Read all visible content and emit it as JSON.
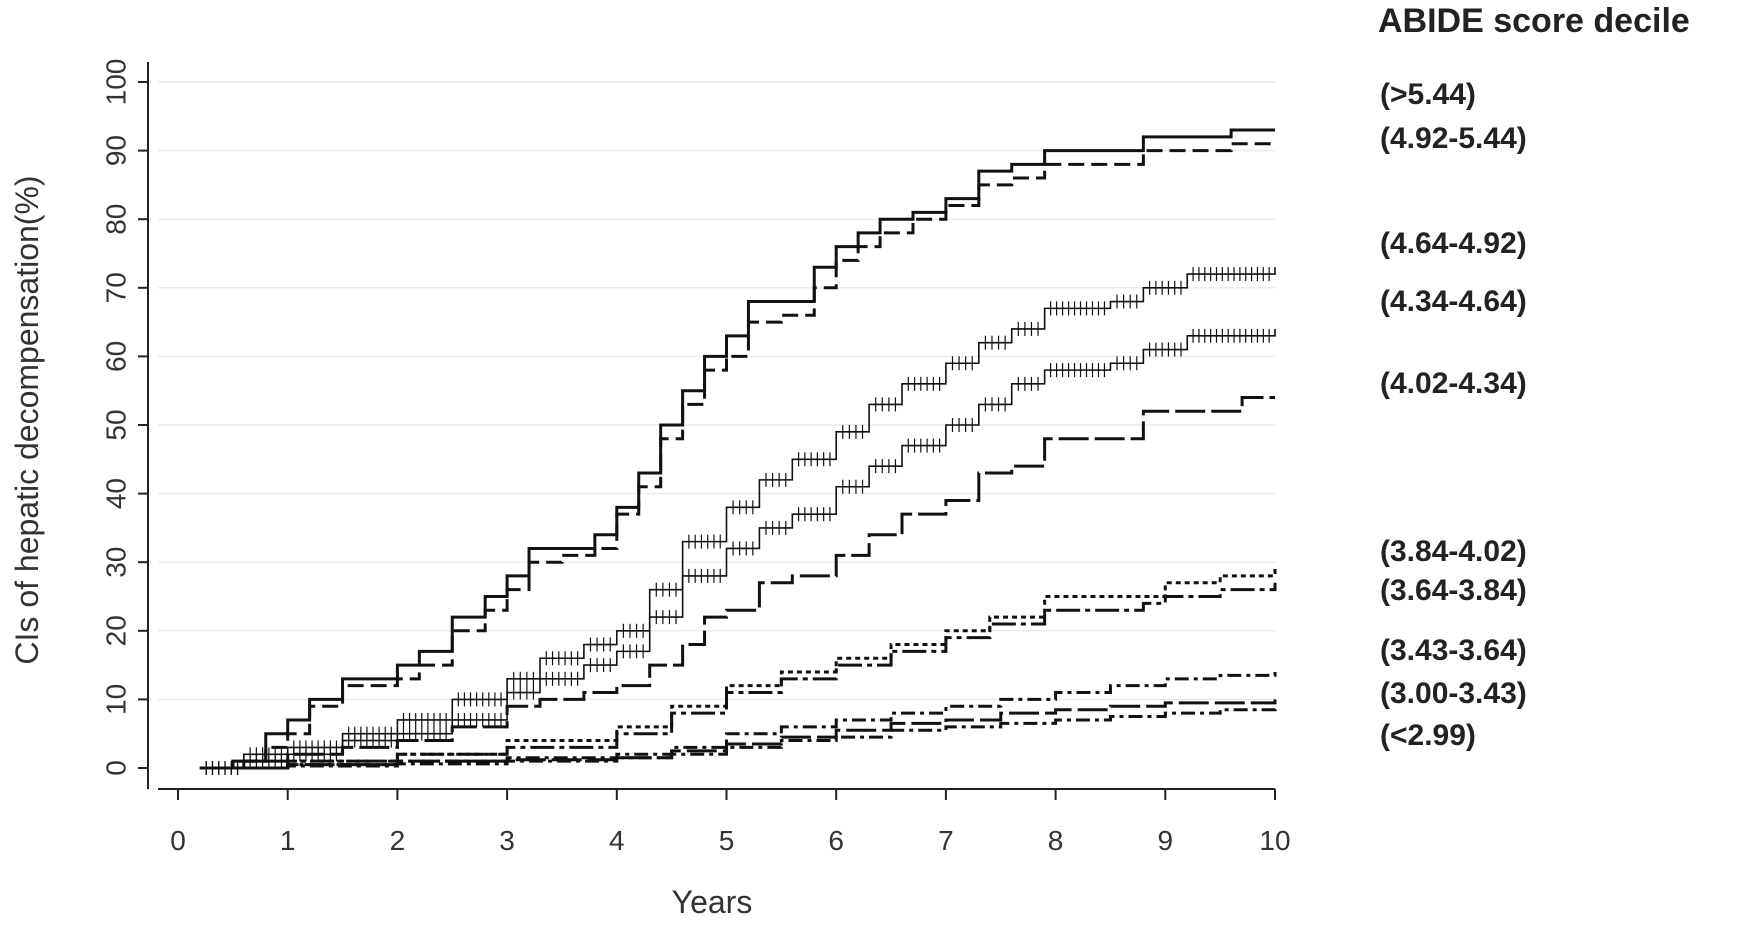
{
  "chart_data": {
    "type": "line",
    "step": true,
    "title": "",
    "xlabel": "Years",
    "ylabel": "CIs of hepatic decompensation(%)",
    "xlim": [
      0,
      10
    ],
    "ylim": [
      0,
      100
    ],
    "x_ticks": [
      0,
      1,
      2,
      3,
      4,
      5,
      6,
      7,
      8,
      9,
      10
    ],
    "y_ticks": [
      0,
      10,
      20,
      30,
      40,
      50,
      60,
      70,
      80,
      90,
      100
    ],
    "grid": "horizontal",
    "legend": {
      "title": "ABIDE score decile",
      "placement": "right, labels aligned to curve ends"
    },
    "series": [
      {
        "name": "(>5.44)",
        "style": "solid",
        "censor_marks": false,
        "points": [
          [
            0.2,
            0
          ],
          [
            0.5,
            1
          ],
          [
            0.8,
            5
          ],
          [
            1,
            7
          ],
          [
            1.2,
            10
          ],
          [
            1.5,
            13
          ],
          [
            2,
            15
          ],
          [
            2.2,
            17
          ],
          [
            2.5,
            22
          ],
          [
            2.8,
            25
          ],
          [
            3,
            28
          ],
          [
            3.2,
            32
          ],
          [
            3.5,
            32
          ],
          [
            3.8,
            34
          ],
          [
            4,
            38
          ],
          [
            4.2,
            43
          ],
          [
            4.4,
            50
          ],
          [
            4.6,
            55
          ],
          [
            4.8,
            60
          ],
          [
            5,
            63
          ],
          [
            5.2,
            68
          ],
          [
            5.5,
            68
          ],
          [
            5.8,
            73
          ],
          [
            6,
            76
          ],
          [
            6.2,
            78
          ],
          [
            6.4,
            80
          ],
          [
            6.7,
            81
          ],
          [
            7,
            83
          ],
          [
            7.3,
            87
          ],
          [
            7.6,
            88
          ],
          [
            7.9,
            90
          ],
          [
            8.5,
            90
          ],
          [
            8.8,
            92
          ],
          [
            9.5,
            92
          ],
          [
            9.6,
            93
          ],
          [
            10,
            93
          ]
        ]
      },
      {
        "name": "(4.92-5.44)",
        "style": "dashed",
        "censor_marks": false,
        "points": [
          [
            0.2,
            0
          ],
          [
            0.5,
            1
          ],
          [
            0.8,
            3
          ],
          [
            1,
            5
          ],
          [
            1.2,
            9
          ],
          [
            1.5,
            12
          ],
          [
            2,
            13
          ],
          [
            2.2,
            15
          ],
          [
            2.5,
            20
          ],
          [
            2.8,
            23
          ],
          [
            3,
            26
          ],
          [
            3.2,
            30
          ],
          [
            3.5,
            31
          ],
          [
            3.8,
            32
          ],
          [
            4,
            37
          ],
          [
            4.2,
            41
          ],
          [
            4.4,
            48
          ],
          [
            4.6,
            53
          ],
          [
            4.8,
            58
          ],
          [
            5,
            60
          ],
          [
            5.2,
            65
          ],
          [
            5.5,
            66
          ],
          [
            5.8,
            70
          ],
          [
            6,
            74
          ],
          [
            6.2,
            76
          ],
          [
            6.4,
            78
          ],
          [
            6.7,
            80
          ],
          [
            7,
            82
          ],
          [
            7.3,
            85
          ],
          [
            7.6,
            86
          ],
          [
            7.9,
            88
          ],
          [
            8.5,
            88
          ],
          [
            8.8,
            90
          ],
          [
            9.5,
            90
          ],
          [
            9.6,
            91
          ],
          [
            10,
            91
          ]
        ]
      },
      {
        "name": "(4.64-4.92)",
        "style": "solid-thin",
        "censor_marks": true,
        "points": [
          [
            0.2,
            0
          ],
          [
            0.6,
            2
          ],
          [
            1,
            3
          ],
          [
            1.5,
            5
          ],
          [
            2,
            7
          ],
          [
            2.5,
            10
          ],
          [
            3,
            13
          ],
          [
            3.3,
            16
          ],
          [
            3.7,
            18
          ],
          [
            4,
            20
          ],
          [
            4.3,
            26
          ],
          [
            4.6,
            33
          ],
          [
            5,
            38
          ],
          [
            5.3,
            42
          ],
          [
            5.6,
            45
          ],
          [
            6,
            49
          ],
          [
            6.3,
            53
          ],
          [
            6.6,
            56
          ],
          [
            7,
            59
          ],
          [
            7.3,
            62
          ],
          [
            7.6,
            64
          ],
          [
            7.9,
            67
          ],
          [
            8.5,
            68
          ],
          [
            8.8,
            70
          ],
          [
            9.2,
            72
          ],
          [
            10,
            73
          ]
        ]
      },
      {
        "name": "(4.34-4.64)",
        "style": "solid-thin",
        "censor_marks": true,
        "points": [
          [
            0.2,
            0
          ],
          [
            0.6,
            1
          ],
          [
            1,
            2
          ],
          [
            1.5,
            4
          ],
          [
            2,
            5
          ],
          [
            2.5,
            7
          ],
          [
            3,
            11
          ],
          [
            3.3,
            13
          ],
          [
            3.7,
            15
          ],
          [
            4,
            17
          ],
          [
            4.3,
            22
          ],
          [
            4.6,
            28
          ],
          [
            5,
            32
          ],
          [
            5.3,
            35
          ],
          [
            5.6,
            37
          ],
          [
            6,
            41
          ],
          [
            6.3,
            44
          ],
          [
            6.6,
            47
          ],
          [
            7,
            50
          ],
          [
            7.3,
            53
          ],
          [
            7.6,
            56
          ],
          [
            7.9,
            58
          ],
          [
            8.5,
            59
          ],
          [
            8.8,
            61
          ],
          [
            9.2,
            63
          ],
          [
            10,
            64
          ]
        ]
      },
      {
        "name": "(4.02-4.34)",
        "style": "long-dash",
        "censor_marks": false,
        "points": [
          [
            0.2,
            0
          ],
          [
            0.6,
            1
          ],
          [
            1,
            2
          ],
          [
            1.5,
            3
          ],
          [
            2,
            4
          ],
          [
            2.5,
            6
          ],
          [
            3,
            9
          ],
          [
            3.3,
            10
          ],
          [
            3.7,
            11
          ],
          [
            4,
            12
          ],
          [
            4.3,
            15
          ],
          [
            4.6,
            18
          ],
          [
            4.8,
            22
          ],
          [
            5,
            23
          ],
          [
            5.3,
            27
          ],
          [
            5.6,
            28
          ],
          [
            6,
            31
          ],
          [
            6.3,
            34
          ],
          [
            6.6,
            37
          ],
          [
            7,
            39
          ],
          [
            7.3,
            43
          ],
          [
            7.6,
            44
          ],
          [
            7.9,
            48
          ],
          [
            8.5,
            48
          ],
          [
            8.8,
            52
          ],
          [
            9.5,
            52
          ],
          [
            9.7,
            54
          ],
          [
            10,
            54
          ]
        ]
      },
      {
        "name": "(3.84-4.02)",
        "style": "dotted",
        "censor_marks": false,
        "points": [
          [
            0.2,
            0
          ],
          [
            1,
            1
          ],
          [
            2,
            2
          ],
          [
            3,
            4
          ],
          [
            4,
            6
          ],
          [
            4.5,
            9
          ],
          [
            5,
            12
          ],
          [
            5.5,
            14
          ],
          [
            6,
            16
          ],
          [
            6.5,
            18
          ],
          [
            7,
            20
          ],
          [
            7.4,
            22
          ],
          [
            7.9,
            25
          ],
          [
            8.8,
            25
          ],
          [
            9,
            27
          ],
          [
            9.5,
            28
          ],
          [
            10,
            29
          ]
        ]
      },
      {
        "name": "(3.64-3.84)",
        "style": "dash-dot-long",
        "censor_marks": false,
        "points": [
          [
            0.2,
            0
          ],
          [
            1,
            1
          ],
          [
            2,
            2
          ],
          [
            3,
            3
          ],
          [
            4,
            5
          ],
          [
            4.5,
            8
          ],
          [
            5,
            11
          ],
          [
            5.5,
            13
          ],
          [
            6,
            15
          ],
          [
            6.5,
            17
          ],
          [
            7,
            19
          ],
          [
            7.4,
            21
          ],
          [
            7.9,
            23
          ],
          [
            8.8,
            24
          ],
          [
            9,
            25
          ],
          [
            9.5,
            26
          ],
          [
            10,
            27
          ]
        ]
      },
      {
        "name": "(3.43-3.64)",
        "style": "dash-dot",
        "censor_marks": false,
        "points": [
          [
            0.2,
            0
          ],
          [
            1,
            0.5
          ],
          [
            2,
            1
          ],
          [
            3,
            1.5
          ],
          [
            4,
            2
          ],
          [
            4.5,
            3
          ],
          [
            5,
            5
          ],
          [
            5.5,
            6
          ],
          [
            6,
            7
          ],
          [
            6.5,
            8
          ],
          [
            7,
            9
          ],
          [
            7.5,
            10
          ],
          [
            8,
            11
          ],
          [
            8.5,
            12
          ],
          [
            9,
            13
          ],
          [
            9.5,
            13.5
          ],
          [
            10,
            14
          ]
        ]
      },
      {
        "name": "(3.00-3.43)",
        "style": "long-dash",
        "censor_marks": false,
        "points": [
          [
            0.2,
            0
          ],
          [
            1,
            0.5
          ],
          [
            2,
            1
          ],
          [
            3,
            1.2
          ],
          [
            4,
            1.5
          ],
          [
            4.5,
            2.5
          ],
          [
            5,
            3.5
          ],
          [
            5.5,
            4.5
          ],
          [
            6,
            5.5
          ],
          [
            6.5,
            6.5
          ],
          [
            7,
            7
          ],
          [
            7.5,
            8
          ],
          [
            8,
            8.5
          ],
          [
            8.5,
            9
          ],
          [
            9,
            9.5
          ],
          [
            10,
            10
          ]
        ]
      },
      {
        "name": "(<2.99)",
        "style": "dash-dot",
        "censor_marks": false,
        "points": [
          [
            0.2,
            0
          ],
          [
            1,
            0.3
          ],
          [
            2,
            0.6
          ],
          [
            3,
            1
          ],
          [
            4,
            1.5
          ],
          [
            4.5,
            2
          ],
          [
            5,
            3
          ],
          [
            5.5,
            4
          ],
          [
            6,
            4.5
          ],
          [
            6.5,
            5.5
          ],
          [
            7,
            6
          ],
          [
            7.5,
            6.5
          ],
          [
            8,
            7
          ],
          [
            8.5,
            7.5
          ],
          [
            9,
            8
          ],
          [
            9.5,
            8.5
          ],
          [
            10,
            9
          ]
        ]
      }
    ]
  }
}
